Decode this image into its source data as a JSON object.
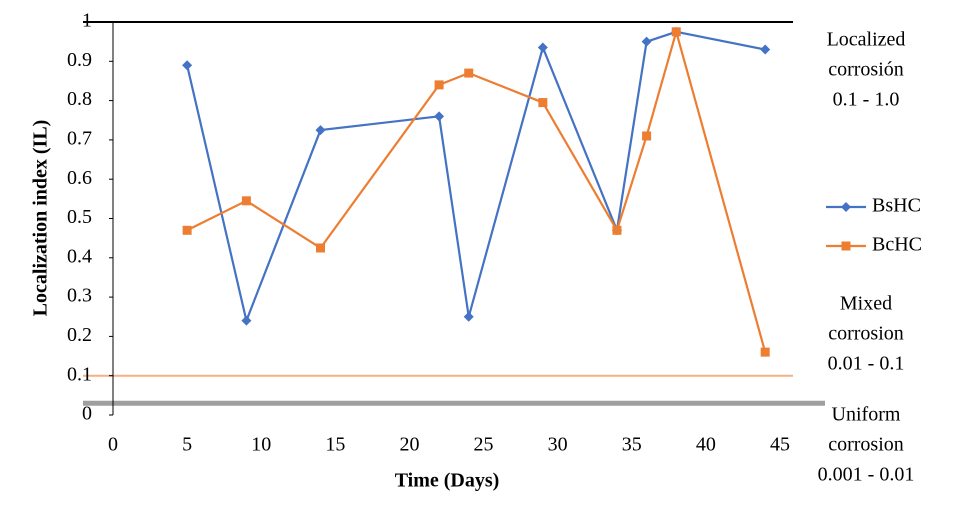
{
  "chart_data": {
    "type": "line",
    "x_label": "Time (Days)",
    "y_label": "Localization index (IL)",
    "x": [
      5,
      9,
      14,
      22,
      24,
      29,
      34,
      36,
      38,
      44
    ],
    "series": [
      {
        "name": "BsHC",
        "color": "#4472c4",
        "marker": "diamond",
        "values": [
          0.89,
          0.24,
          0.725,
          0.76,
          0.25,
          0.935,
          0.47,
          0.95,
          0.975,
          0.93
        ]
      },
      {
        "name": "BcHC",
        "color": "#ed7d31",
        "marker": "square",
        "values": [
          0.47,
          0.545,
          0.425,
          0.84,
          0.87,
          0.795,
          0.47,
          0.71,
          0.975,
          0.16
        ]
      }
    ],
    "xlim": [
      0,
      45
    ],
    "xticks": [
      0,
      5,
      10,
      15,
      20,
      25,
      30,
      35,
      40,
      45
    ],
    "ylim": [
      0,
      1
    ],
    "yticks": [
      0,
      0.1,
      0.2,
      0.3,
      0.4,
      0.5,
      0.6,
      0.7,
      0.8,
      0.9,
      1
    ],
    "reference_lines": [
      {
        "value": 1,
        "color": "#000000"
      },
      {
        "value": 0.1,
        "color": "#f4b183"
      },
      {
        "value": 0.03,
        "color": "#7f7f7f"
      }
    ],
    "annotations": [
      {
        "lines": [
          "Localized",
          "corrosión",
          "0.1 - 1.0"
        ]
      },
      {
        "lines": [
          "Mixed",
          "corrosion",
          "0.01 -  0.1"
        ]
      },
      {
        "lines": [
          "Uniform",
          "corrosion",
          "0.001 - 0.01"
        ]
      }
    ],
    "legend": "right"
  }
}
